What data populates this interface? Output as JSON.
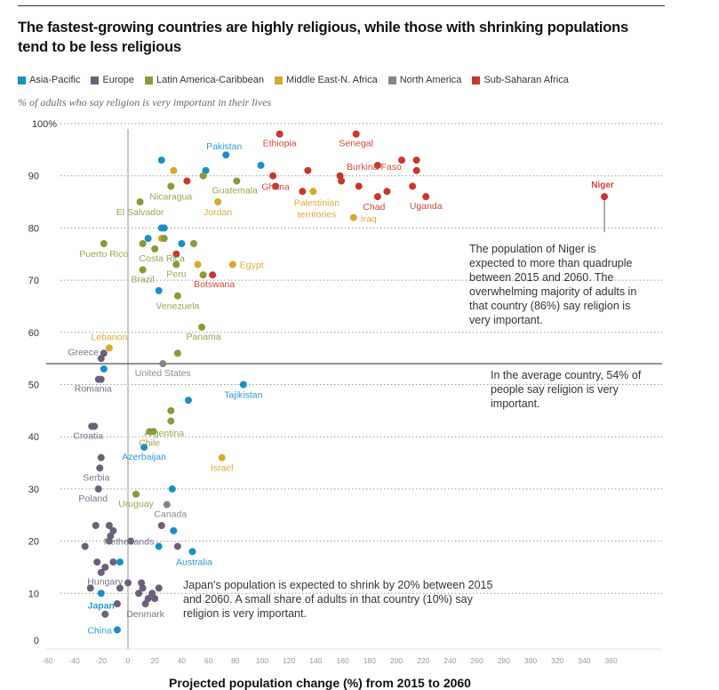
{
  "title": "The fastest-growing countries are highly religious, while those with shrinking populations tend to be less religious",
  "subtitle": "% of adults who say religion is very important in their lives",
  "bottom_title": "Projected population change (%) from 2015 to 2060",
  "legend": [
    {
      "name": "Asia-Pacific",
      "color": "#1a8fc4"
    },
    {
      "name": "Europe",
      "color": "#6b5f7a"
    },
    {
      "name": "Latin America-Caribbean",
      "color": "#8a9a3a"
    },
    {
      "name": "Middle East-N. Africa",
      "color": "#d9a82a"
    },
    {
      "name": "North America",
      "color": "#858585"
    },
    {
      "name": "Sub-Saharan Africa",
      "color": "#c9362b"
    }
  ],
  "annotations": {
    "niger": "The population of Niger is expected to more than quadruple between 2015 and 2060. The overwhelming majority of adults in that country (86%) say religion is very important.",
    "average": "In the average country, 54% of people say religion is very important.",
    "japan": "Japan's population is expected to shrink by 20% between 2015 and 2060. A small share of adults in that country (10%) say religion is very important."
  },
  "chart_data": {
    "type": "scatter",
    "title": "The fastest-growing countries are highly religious, while those with shrinking populations tend to be less religious",
    "xlabel": "Projected population change (%) from 2015 to 2060",
    "ylabel": "% of adults who say religion is very important in their lives",
    "xlim": [
      -60,
      370
    ],
    "ylim": [
      0,
      100
    ],
    "xticks": [
      -60,
      -40,
      -20,
      0,
      20,
      40,
      60,
      80,
      100,
      120,
      140,
      160,
      180,
      200,
      220,
      240,
      260,
      280,
      300,
      320,
      340,
      360
    ],
    "yticks": [
      0,
      10,
      20,
      30,
      40,
      50,
      60,
      70,
      80,
      90,
      100
    ],
    "ytick_labels": [
      "0",
      "10",
      "20",
      "30",
      "40",
      "50",
      "60",
      "70",
      "80",
      "90",
      "100%"
    ],
    "grid": "horizontal dotted",
    "reference_line": {
      "y": 54,
      "label": "average"
    },
    "legend_position": "top",
    "points": [
      {
        "label": "Ethiopia",
        "region": "Sub-Saharan Africa",
        "x": 113,
        "y": 98
      },
      {
        "label": "Senegal",
        "region": "Sub-Saharan Africa",
        "x": 170,
        "y": 98
      },
      {
        "label": "Burkina Faso",
        "region": "Sub-Saharan Africa",
        "x": 186,
        "y": 92
      },
      {
        "label": "",
        "region": "Sub-Saharan Africa",
        "x": 204,
        "y": 93
      },
      {
        "label": "",
        "region": "Sub-Saharan Africa",
        "x": 215,
        "y": 93
      },
      {
        "label": "",
        "region": "Sub-Saharan Africa",
        "x": 215,
        "y": 91
      },
      {
        "label": "",
        "region": "Sub-Saharan Africa",
        "x": 134,
        "y": 91
      },
      {
        "label": "",
        "region": "Sub-Saharan Africa",
        "x": 108,
        "y": 90
      },
      {
        "label": "Ghana",
        "region": "Sub-Saharan Africa",
        "x": 110,
        "y": 88
      },
      {
        "label": "",
        "region": "Sub-Saharan Africa",
        "x": 158,
        "y": 90
      },
      {
        "label": "",
        "region": "Sub-Saharan Africa",
        "x": 159,
        "y": 89
      },
      {
        "label": "",
        "region": "Sub-Saharan Africa",
        "x": 130,
        "y": 87
      },
      {
        "label": "",
        "region": "Sub-Saharan Africa",
        "x": 172,
        "y": 88
      },
      {
        "label": "",
        "region": "Sub-Saharan Africa",
        "x": 212,
        "y": 88
      },
      {
        "label": "Chad",
        "region": "Sub-Saharan Africa",
        "x": 186,
        "y": 86
      },
      {
        "label": "",
        "region": "Sub-Saharan Africa",
        "x": 193,
        "y": 87
      },
      {
        "label": "Uganda",
        "region": "Sub-Saharan Africa",
        "x": 222,
        "y": 86
      },
      {
        "label": "Niger",
        "region": "Sub-Saharan Africa",
        "x": 355,
        "y": 86
      },
      {
        "label": "",
        "region": "Sub-Saharan Africa",
        "x": 44,
        "y": 89
      },
      {
        "label": "",
        "region": "Sub-Saharan Africa",
        "x": 36,
        "y": 75
      },
      {
        "label": "Botswana",
        "region": "Sub-Saharan Africa",
        "x": 63,
        "y": 71
      },
      {
        "label": "Pakistan",
        "region": "Asia-Pacific",
        "x": 73,
        "y": 94
      },
      {
        "label": "",
        "region": "Asia-Pacific",
        "x": 25,
        "y": 93
      },
      {
        "label": "",
        "region": "Asia-Pacific",
        "x": 58,
        "y": 91
      },
      {
        "label": "",
        "region": "Asia-Pacific",
        "x": 99,
        "y": 92
      },
      {
        "label": "",
        "region": "Asia-Pacific",
        "x": 25,
        "y": 80
      },
      {
        "label": "",
        "region": "Asia-Pacific",
        "x": 27,
        "y": 80
      },
      {
        "label": "",
        "region": "Asia-Pacific",
        "x": 15,
        "y": 78
      },
      {
        "label": "",
        "region": "Asia-Pacific",
        "x": 40,
        "y": 77
      },
      {
        "label": "",
        "region": "Asia-Pacific",
        "x": 23,
        "y": 68
      },
      {
        "label": "",
        "region": "Asia-Pacific",
        "x": -18,
        "y": 53
      },
      {
        "label": "Tajikistan",
        "region": "Asia-Pacific",
        "x": 86,
        "y": 50
      },
      {
        "label": "",
        "region": "Asia-Pacific",
        "x": 45,
        "y": 47
      },
      {
        "label": "Azerbaijan",
        "region": "Asia-Pacific",
        "x": 12,
        "y": 38
      },
      {
        "label": "",
        "region": "Asia-Pacific",
        "x": 33,
        "y": 30
      },
      {
        "label": "",
        "region": "Asia-Pacific",
        "x": 34,
        "y": 22
      },
      {
        "label": "",
        "region": "Asia-Pacific",
        "x": 23,
        "y": 19
      },
      {
        "label": "Australia",
        "region": "Asia-Pacific",
        "x": 48,
        "y": 18
      },
      {
        "label": "",
        "region": "Asia-Pacific",
        "x": -6,
        "y": 16
      },
      {
        "label": "Japan",
        "region": "Asia-Pacific",
        "x": -20,
        "y": 10
      },
      {
        "label": "China",
        "region": "Asia-Pacific",
        "x": -8,
        "y": 3
      },
      {
        "label": "",
        "region": "Middle East-N. Africa",
        "x": 34,
        "y": 91
      },
      {
        "label": "Jordan",
        "region": "Middle East-N. Africa",
        "x": 67,
        "y": 85
      },
      {
        "label": "Palestinian territories",
        "region": "Middle East-N. Africa",
        "x": 138,
        "y": 87
      },
      {
        "label": "Iraq",
        "region": "Middle East-N. Africa",
        "x": 168,
        "y": 82
      },
      {
        "label": "",
        "region": "Middle East-N. Africa",
        "x": 25,
        "y": 78
      },
      {
        "label": "",
        "region": "Middle East-N. Africa",
        "x": 52,
        "y": 73
      },
      {
        "label": "Egypt",
        "region": "Middle East-N. Africa",
        "x": 78,
        "y": 73
      },
      {
        "label": "Lebanon",
        "region": "Middle East-N. Africa",
        "x": -14,
        "y": 57
      },
      {
        "label": "Israel",
        "region": "Middle East-N. Africa",
        "x": 70,
        "y": 36
      },
      {
        "label": "",
        "region": "Latin America-Caribbean",
        "x": 56,
        "y": 90
      },
      {
        "label": "Nicaragua",
        "region": "Latin America-Caribbean",
        "x": 32,
        "y": 88
      },
      {
        "label": "Guatemala",
        "region": "Latin America-Caribbean",
        "x": 81,
        "y": 89
      },
      {
        "label": "El Salvador",
        "region": "Latin America-Caribbean",
        "x": 9,
        "y": 85
      },
      {
        "label": "",
        "region": "Latin America-Caribbean",
        "x": 27,
        "y": 78
      },
      {
        "label": "Puerto Rico",
        "region": "Latin America-Caribbean",
        "x": -18,
        "y": 77
      },
      {
        "label": "",
        "region": "Latin America-Caribbean",
        "x": 11,
        "y": 77
      },
      {
        "label": "Costa Rica",
        "region": "Latin America-Caribbean",
        "x": 20,
        "y": 76
      },
      {
        "label": "",
        "region": "Latin America-Caribbean",
        "x": 49,
        "y": 77
      },
      {
        "label": "Brazil",
        "region": "Latin America-Caribbean",
        "x": 11,
        "y": 72
      },
      {
        "label": "Peru",
        "region": "Latin America-Caribbean",
        "x": 36,
        "y": 73
      },
      {
        "label": "",
        "region": "Latin America-Caribbean",
        "x": 56,
        "y": 71
      },
      {
        "label": "Venezuela",
        "region": "Latin America-Caribbean",
        "x": 37,
        "y": 67
      },
      {
        "label": "Panama",
        "region": "Latin America-Caribbean",
        "x": 55,
        "y": 61
      },
      {
        "label": "",
        "region": "Latin America-Caribbean",
        "x": 37,
        "y": 56
      },
      {
        "label": "",
        "region": "Latin America-Caribbean",
        "x": 32,
        "y": 45
      },
      {
        "label": "",
        "region": "Latin America-Caribbean",
        "x": 32,
        "y": 43
      },
      {
        "label": "Argentina",
        "region": "Latin America-Caribbean",
        "x": 19,
        "y": 41
      },
      {
        "label": "Chile",
        "region": "Latin America-Caribbean",
        "x": 16,
        "y": 41
      },
      {
        "label": "Uruguay",
        "region": "Latin America-Caribbean",
        "x": 6,
        "y": 29
      },
      {
        "label": "United States",
        "region": "North America",
        "x": 26,
        "y": 54
      },
      {
        "label": "Canada",
        "region": "North America",
        "x": 29,
        "y": 27
      },
      {
        "label": "Greece",
        "region": "Europe",
        "x": -18,
        "y": 56
      },
      {
        "label": "",
        "region": "Europe",
        "x": -20,
        "y": 55
      },
      {
        "label": "Romania",
        "region": "Europe",
        "x": -22,
        "y": 51
      },
      {
        "label": "",
        "region": "Europe",
        "x": -20,
        "y": 51
      },
      {
        "label": "Croatia",
        "region": "Europe",
        "x": -27,
        "y": 42
      },
      {
        "label": "",
        "region": "Europe",
        "x": -25,
        "y": 42
      },
      {
        "label": "",
        "region": "Europe",
        "x": -20,
        "y": 36
      },
      {
        "label": "Serbia",
        "region": "Europe",
        "x": -21,
        "y": 34
      },
      {
        "label": "Poland",
        "region": "Europe",
        "x": -22,
        "y": 30
      },
      {
        "label": "",
        "region": "Europe",
        "x": -24,
        "y": 23
      },
      {
        "label": "",
        "region": "Europe",
        "x": -14,
        "y": 23
      },
      {
        "label": "",
        "region": "Europe",
        "x": -11,
        "y": 22
      },
      {
        "label": "",
        "region": "Europe",
        "x": -13,
        "y": 21
      },
      {
        "label": "",
        "region": "Europe",
        "x": -14,
        "y": 20
      },
      {
        "label": "",
        "region": "Europe",
        "x": -32,
        "y": 19
      },
      {
        "label": "Netherlands",
        "region": "Europe",
        "x": 2,
        "y": 20
      },
      {
        "label": "",
        "region": "Europe",
        "x": 25,
        "y": 23
      },
      {
        "label": "",
        "region": "Europe",
        "x": 37,
        "y": 19
      },
      {
        "label": "",
        "region": "Europe",
        "x": -23,
        "y": 16
      },
      {
        "label": "",
        "region": "Europe",
        "x": -17,
        "y": 15
      },
      {
        "label": "",
        "region": "Europe",
        "x": -20,
        "y": 14
      },
      {
        "label": "",
        "region": "Europe",
        "x": -11,
        "y": 16
      },
      {
        "label": "Hungary",
        "region": "Europe",
        "x": 0,
        "y": 12
      },
      {
        "label": "",
        "region": "Europe",
        "x": -28,
        "y": 11
      },
      {
        "label": "",
        "region": "Europe",
        "x": -6,
        "y": 11
      },
      {
        "label": "",
        "region": "Europe",
        "x": 10,
        "y": 12
      },
      {
        "label": "",
        "region": "Europe",
        "x": 11,
        "y": 11
      },
      {
        "label": "",
        "region": "Europe",
        "x": 8,
        "y": 10
      },
      {
        "label": "",
        "region": "Europe",
        "x": 18,
        "y": 10
      },
      {
        "label": "",
        "region": "Europe",
        "x": 15,
        "y": 9
      },
      {
        "label": "",
        "region": "Europe",
        "x": 20,
        "y": 9
      },
      {
        "label": "",
        "region": "Europe",
        "x": 23,
        "y": 11
      },
      {
        "label": "Denmark",
        "region": "Europe",
        "x": 13,
        "y": 8
      },
      {
        "label": "",
        "region": "Europe",
        "x": -8,
        "y": 8
      },
      {
        "label": "",
        "region": "Europe",
        "x": -17,
        "y": 6
      }
    ]
  }
}
